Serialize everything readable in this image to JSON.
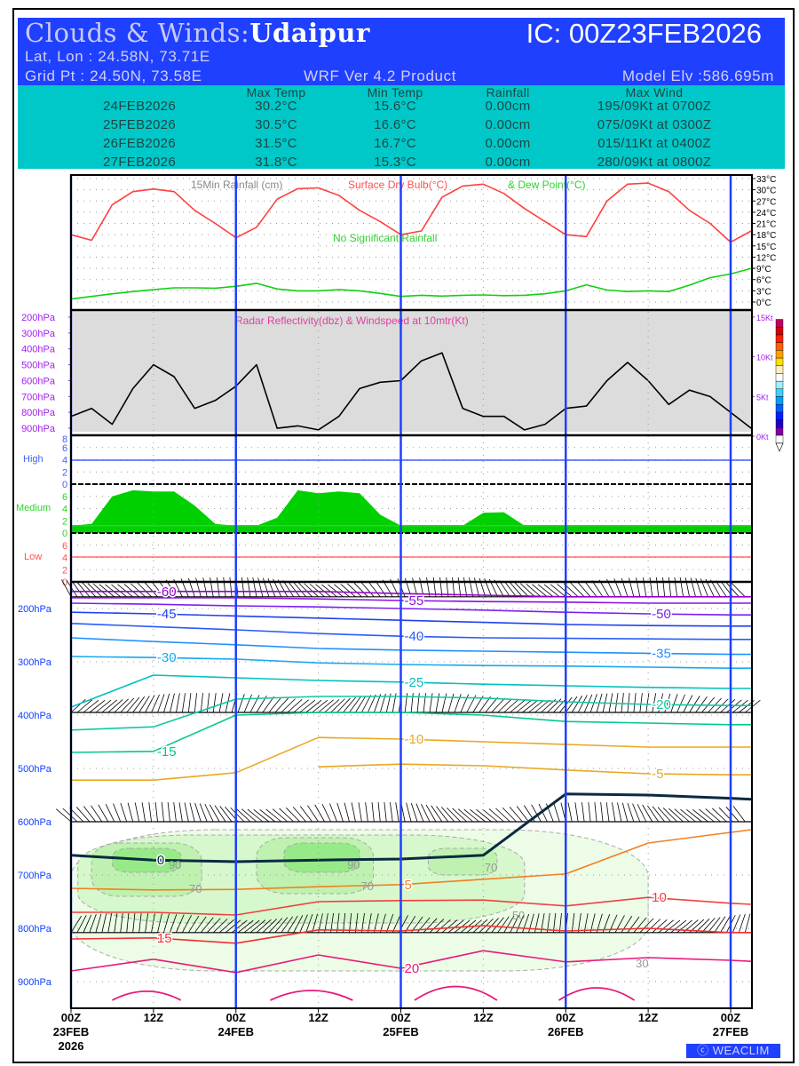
{
  "header": {
    "title_prefix": "Clouds & Winds:",
    "location": "Udaipur",
    "ic": "IC: 00Z23FEB2026",
    "latlon": "Lat, Lon : 24.58N, 73.71E",
    "gridpt": "Grid Pt  : 24.50N, 73.58E",
    "product": "WRF Ver 4.2 Product",
    "elevation": "Model Elv :586.695m"
  },
  "summary": {
    "columns": [
      "Max Temp",
      "Min Temp",
      "Rainfall",
      "Max Wind"
    ],
    "rows": [
      {
        "date": "24FEB2026",
        "max": "30.2°C",
        "min": "15.6°C",
        "rain": "0.00cm",
        "wind": "195/09Kt at 0700Z"
      },
      {
        "date": "25FEB2026",
        "max": "30.5°C",
        "min": "16.6°C",
        "rain": "0.00cm",
        "wind": "075/09Kt at 0300Z"
      },
      {
        "date": "26FEB2026",
        "max": "31.5°C",
        "min": "16.7°C",
        "rain": "0.00cm",
        "wind": "015/11Kt at 0400Z"
      },
      {
        "date": "27FEB2026",
        "max": "31.8°C",
        "min": "15.3°C",
        "rain": "0.00cm",
        "wind": "280/09Kt at 0800Z"
      }
    ]
  },
  "footer": {
    "copyright": "WEACLIM"
  },
  "colors": {
    "header_bg": "#2040ff",
    "summary_bg": "#00c8c8",
    "day_line": "#2040ff",
    "temp": "#ff4040",
    "dew": "#10d010",
    "cloud": "#00d000"
  },
  "x_axis": {
    "hours_range": [
      0,
      99
    ],
    "ticks": [
      {
        "h": 0,
        "l1": "00Z",
        "l2": "23FEB",
        "l3": "2026"
      },
      {
        "h": 12,
        "l1": "12Z",
        "l2": "",
        "l3": ""
      },
      {
        "h": 24,
        "l1": "00Z",
        "l2": "24FEB",
        "l3": ""
      },
      {
        "h": 36,
        "l1": "12Z",
        "l2": "",
        "l3": ""
      },
      {
        "h": 48,
        "l1": "00Z",
        "l2": "25FEB",
        "l3": ""
      },
      {
        "h": 60,
        "l1": "12Z",
        "l2": "",
        "l3": ""
      },
      {
        "h": 72,
        "l1": "00Z",
        "l2": "26FEB",
        "l3": ""
      },
      {
        "h": 84,
        "l1": "12Z",
        "l2": "",
        "l3": ""
      },
      {
        "h": 96,
        "l1": "00Z",
        "l2": "27FEB",
        "l3": ""
      }
    ]
  },
  "chart_data": [
    {
      "type": "line",
      "panel": "surface",
      "legend": [
        "15Min Rainfall (cm)",
        "Surface Dry Bulb(°C)",
        "& Dew Point(°C)"
      ],
      "annotation": "No Significant Rainfall",
      "ylim": [
        0,
        33
      ],
      "yticks": [
        "0°C",
        "3°C",
        "6°C",
        "9°C",
        "12°C",
        "15°C",
        "18°C",
        "21°C",
        "24°C",
        "27°C",
        "30°C",
        "33°C"
      ],
      "hours": [
        0,
        3,
        6,
        9,
        12,
        15,
        18,
        21,
        24,
        27,
        30,
        33,
        36,
        39,
        42,
        45,
        48,
        51,
        54,
        57,
        60,
        63,
        66,
        69,
        72,
        75,
        78,
        81,
        84,
        87,
        90,
        93,
        96,
        99
      ],
      "series": [
        {
          "name": "Surface Dry Bulb",
          "values": [
            18,
            16.5,
            26,
            29.5,
            30.2,
            29.5,
            24.5,
            21,
            17.2,
            20,
            27.5,
            30.3,
            30.5,
            28.5,
            24.5,
            21.5,
            18,
            19,
            28,
            31,
            31.5,
            29,
            25,
            21.5,
            18,
            17.5,
            27,
            31.5,
            31.8,
            29.5,
            24.5,
            21,
            16,
            19
          ]
        },
        {
          "name": "Dew Point",
          "values": [
            0.8,
            1.5,
            2.2,
            2.8,
            3.3,
            3.8,
            3.8,
            3.7,
            4.2,
            5,
            3.5,
            3,
            3,
            3.3,
            3,
            2.3,
            1.5,
            1.8,
            1.6,
            1.8,
            1.9,
            1.7,
            1.8,
            2.2,
            3,
            4.6,
            3.2,
            2.8,
            3,
            2.8,
            4.5,
            6.5,
            7.5,
            9
          ]
        }
      ]
    },
    {
      "type": "line",
      "panel": "radar-wind",
      "title": "Radar Reflectivity(dbz) & Windspeed at 10mtr(Kt)",
      "left_ticks": [
        "200hPa",
        "300hPa",
        "400hPa",
        "500hPa",
        "600hPa",
        "700hPa",
        "800hPa",
        "900hPa"
      ],
      "right_ticks": [
        "0Kt",
        "5Kt",
        "10Kt",
        "15Kt"
      ],
      "ylim": [
        0,
        15
      ],
      "hours": [
        0,
        3,
        6,
        9,
        12,
        15,
        18,
        21,
        24,
        27,
        30,
        33,
        36,
        39,
        42,
        45,
        48,
        51,
        54,
        57,
        60,
        63,
        66,
        69,
        72,
        75,
        78,
        81,
        84,
        87,
        90,
        93,
        96,
        99
      ],
      "series": [
        {
          "name": "Windspeed 10m (Kt)",
          "values": [
            2.5,
            3.5,
            1.5,
            6,
            9,
            7.5,
            3.5,
            4.5,
            6.3,
            9,
            1,
            1.3,
            0.8,
            2.5,
            6,
            6.8,
            7,
            9.5,
            10.5,
            3.5,
            2.5,
            2.5,
            0.8,
            1.5,
            3.5,
            3.8,
            7,
            9.3,
            7,
            4,
            5.8,
            5,
            3,
            1
          ]
        }
      ]
    },
    {
      "type": "area",
      "panel": "cloud-cover",
      "ticks": [
        "0",
        "2",
        "4",
        "6",
        "8"
      ],
      "ylim": [
        0,
        8
      ],
      "hours": [
        0,
        3,
        6,
        9,
        12,
        15,
        18,
        21,
        24,
        27,
        30,
        33,
        36,
        39,
        42,
        45,
        48,
        51,
        54,
        57,
        60,
        63,
        66,
        69,
        72,
        75,
        78,
        81,
        84,
        87,
        90,
        93,
        96,
        99
      ],
      "series": [
        {
          "name": "High",
          "values": [
            0,
            0,
            0,
            0,
            0,
            0,
            0,
            0,
            0,
            0,
            0,
            0,
            0,
            0,
            0,
            0,
            0,
            0,
            0,
            0,
            0,
            0,
            0,
            0,
            0,
            0,
            0,
            0,
            0,
            0,
            0,
            0,
            0,
            0
          ]
        },
        {
          "name": "Medium",
          "values": [
            0,
            1.5,
            6,
            7,
            6.8,
            6.8,
            4.5,
            1.5,
            0,
            0,
            2.5,
            7,
            6.5,
            6.8,
            6.5,
            3,
            0,
            0,
            0,
            0,
            3.3,
            3.4,
            0,
            0,
            0,
            0,
            0,
            0,
            0,
            0,
            0,
            0,
            0,
            0
          ]
        },
        {
          "name": "Low",
          "values": [
            0,
            0,
            0,
            0,
            0,
            0,
            0,
            0,
            0,
            0,
            0,
            0,
            0,
            0,
            0,
            0,
            0,
            0,
            0,
            0,
            0,
            0,
            0,
            0,
            0,
            0,
            0,
            0,
            0,
            0,
            0,
            0,
            0,
            0
          ]
        }
      ]
    },
    {
      "type": "contour",
      "panel": "cross-section",
      "yticks": [
        "200hPa",
        "300hPa",
        "400hPa",
        "500hPa",
        "600hPa",
        "700hPa",
        "800hPa",
        "900hPa"
      ],
      "ylim_hpa": [
        150,
        950
      ],
      "hours": [
        0,
        12,
        24,
        36,
        48,
        60,
        72,
        84,
        96,
        99
      ],
      "isotherms": [
        {
          "level": "-60",
          "color": "#9a00d0",
          "p": [
            168,
            168,
            168,
            168,
            172,
            175,
            178,
            178,
            178,
            178
          ]
        },
        {
          "level": "-55",
          "color": "#8a10e0",
          "p": [
            180,
            180,
            180,
            182,
            185,
            187,
            188,
            190,
            190,
            190
          ]
        },
        {
          "level": "-50",
          "color": "#7a20f0",
          "p": [
            190,
            192,
            195,
            197,
            200,
            203,
            207,
            210,
            212,
            212
          ]
        },
        {
          "level": "-45",
          "color": "#2040f0",
          "p": [
            207,
            210,
            214,
            218,
            222,
            226,
            230,
            232,
            233,
            233
          ]
        },
        {
          "level": "-40",
          "color": "#2a5cf5",
          "p": [
            228,
            234,
            240,
            247,
            252,
            255,
            256,
            257,
            258,
            258
          ]
        },
        {
          "level": "-35",
          "color": "#1e90ff",
          "p": [
            255,
            262,
            268,
            275,
            278,
            280,
            282,
            284,
            286,
            286
          ]
        },
        {
          "level": "-30",
          "color": "#18a8f0",
          "p": [
            290,
            292,
            295,
            302,
            305,
            307,
            308,
            310,
            312,
            312
          ]
        },
        {
          "level": "-25",
          "color": "#00c0c0",
          "p": [
            385,
            325,
            330,
            335,
            338,
            342,
            345,
            348,
            350,
            350
          ]
        },
        {
          "level": "-20",
          "color": "#10c8a0",
          "p": [
            428,
            422,
            370,
            365,
            365,
            368,
            375,
            380,
            382,
            382
          ]
        },
        {
          "level": "-15",
          "color": "#00c890",
          "p": [
            470,
            468,
            400,
            395,
            395,
            400,
            412,
            415,
            418,
            418
          ]
        },
        {
          "level": "-10",
          "color": "#e8a820",
          "p": [
            522,
            522,
            508,
            442,
            445,
            450,
            455,
            460,
            460,
            460
          ]
        },
        {
          "level": "-5",
          "color": "#e8a820",
          "p": [
            null,
            null,
            null,
            497,
            492,
            495,
            503,
            510,
            512,
            512
          ]
        },
        {
          "level": "0",
          "color": "#0a2a40",
          "p": [
            663,
            672,
            675,
            672,
            670,
            663,
            548,
            550,
            556,
            558
          ]
        },
        {
          "level": "5",
          "color": "#f08020",
          "p": [
            725,
            728,
            727,
            722,
            718,
            708,
            698,
            640,
            620,
            615
          ]
        },
        {
          "level": "10",
          "color": "#f04040",
          "p": [
            770,
            770,
            775,
            750,
            748,
            747,
            758,
            742,
            753,
            755
          ]
        },
        {
          "level": "15",
          "color": "#f03030",
          "p": [
            820,
            818,
            828,
            803,
            805,
            795,
            805,
            800,
            808,
            808
          ]
        },
        {
          "level": "20",
          "color": "#e8187a",
          "p": [
            880,
            858,
            883,
            850,
            875,
            842,
            863,
            855,
            860,
            862
          ]
        }
      ],
      "isotherm_25_arcs": [
        {
          "t0": 6,
          "t1": 16,
          "peak_hpa": 918
        },
        {
          "t0": 29,
          "t1": 41,
          "peak_hpa": 915
        },
        {
          "t0": 50,
          "t1": 62,
          "peak_hpa": 900
        },
        {
          "t0": 71,
          "t1": 82,
          "peak_hpa": 905
        }
      ],
      "rh_shading": [
        {
          "rh": "30",
          "t0": 0,
          "t1": 84,
          "p0": 615,
          "p1": 880
        },
        {
          "rh": "50",
          "t0": 1,
          "t1": 66,
          "p0": 625,
          "p1": 790
        },
        {
          "rh": "70",
          "t0": 3,
          "t1": 19,
          "p0": 640,
          "p1": 740
        },
        {
          "rh": "70",
          "t0": 27,
          "t1": 44,
          "p0": 630,
          "p1": 735
        },
        {
          "rh": "90",
          "t0": 6,
          "t1": 16,
          "p0": 650,
          "p1": 695
        },
        {
          "rh": "90",
          "t0": 31,
          "t1": 42,
          "p0": 640,
          "p1": 695
        },
        {
          "rh": "70",
          "t0": 52,
          "t1": 62,
          "p0": 650,
          "p1": 700
        }
      ],
      "wind_barb_levels_hpa": [
        178,
        395,
        600,
        808
      ]
    }
  ]
}
